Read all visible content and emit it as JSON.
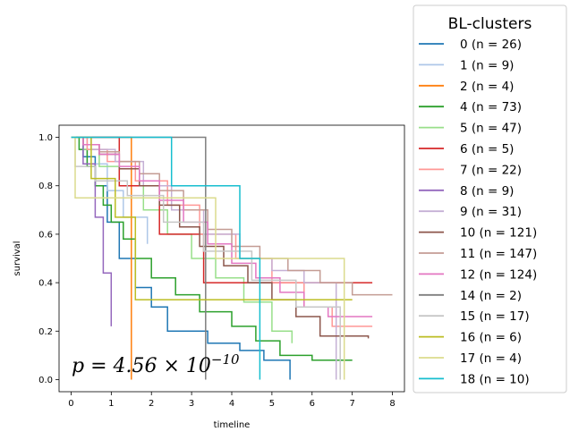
{
  "chart_data": {
    "type": "line",
    "step": true,
    "xlabel": "timeline",
    "ylabel": "survival",
    "xlim": [
      -0.3,
      8.3
    ],
    "ylim": [
      -0.05,
      1.05
    ],
    "xticks": [
      0,
      1,
      2,
      3,
      4,
      5,
      6,
      7,
      8
    ],
    "yticks": [
      0.0,
      0.2,
      0.4,
      0.6,
      0.8,
      1.0
    ],
    "xtick_labels": [
      "0",
      "1",
      "2",
      "3",
      "4",
      "5",
      "6",
      "7",
      "8"
    ],
    "ytick_labels": [
      "0.0",
      "0.2",
      "0.4",
      "0.6",
      "0.8",
      "1.0"
    ],
    "annotation": "p = 4.56 × 10^−10",
    "legend": {
      "title": "BL-clusters",
      "placement": "outside-right"
    },
    "grid": false,
    "series": [
      {
        "name": "0 (n = 26)",
        "color": "#1f77b4",
        "x": [
          0,
          0.3,
          0.6,
          0.9,
          1.2,
          1.6,
          2.0,
          2.4,
          3.4,
          4.2,
          4.8,
          5.45,
          5.45
        ],
        "y": [
          1.0,
          0.92,
          0.8,
          0.65,
          0.5,
          0.38,
          0.3,
          0.2,
          0.15,
          0.12,
          0.08,
          0.04,
          0.0
        ]
      },
      {
        "name": "1 (n = 9)",
        "color": "#aec7e8",
        "x": [
          0,
          0.4,
          0.9,
          1.3,
          1.9,
          1.9
        ],
        "y": [
          1.0,
          0.89,
          0.78,
          0.67,
          0.56,
          0.56
        ]
      },
      {
        "name": "2 (n = 4)",
        "color": "#ff7f0e",
        "x": [
          0,
          1.5,
          1.5
        ],
        "y": [
          1.0,
          1.0,
          0.0
        ]
      },
      {
        "name": "4 (n = 73)",
        "color": "#2ca02c",
        "x": [
          0,
          0.2,
          0.4,
          0.6,
          0.8,
          1.0,
          1.3,
          1.6,
          2.0,
          2.6,
          3.2,
          4.0,
          4.6,
          5.2,
          6.0,
          7.0
        ],
        "y": [
          1.0,
          0.95,
          0.88,
          0.8,
          0.72,
          0.65,
          0.58,
          0.5,
          0.42,
          0.35,
          0.28,
          0.22,
          0.16,
          0.1,
          0.08,
          0.08
        ]
      },
      {
        "name": "5 (n = 47)",
        "color": "#98df8a",
        "x": [
          0,
          0.3,
          0.7,
          1.2,
          1.8,
          2.4,
          3.0,
          3.6,
          4.3,
          5.0,
          5.5
        ],
        "y": [
          1.0,
          0.95,
          0.88,
          0.8,
          0.7,
          0.6,
          0.5,
          0.42,
          0.32,
          0.2,
          0.15
        ]
      },
      {
        "name": "6 (n = 5)",
        "color": "#d62728",
        "x": [
          0,
          1.2,
          2.2,
          3.3,
          7.5
        ],
        "y": [
          1.0,
          0.8,
          0.6,
          0.4,
          0.4
        ]
      },
      {
        "name": "7 (n = 22)",
        "color": "#ff9896",
        "x": [
          0,
          0.4,
          0.9,
          1.6,
          2.4,
          3.2,
          4.1,
          5.0,
          5.8,
          6.5,
          7.5
        ],
        "y": [
          1.0,
          0.95,
          0.9,
          0.82,
          0.72,
          0.6,
          0.5,
          0.4,
          0.3,
          0.22,
          0.22
        ]
      },
      {
        "name": "8 (n = 9)",
        "color": "#9467bd",
        "x": [
          0,
          0.3,
          0.6,
          0.8,
          1.0,
          1.0
        ],
        "y": [
          1.0,
          0.89,
          0.67,
          0.44,
          0.22,
          0.22
        ]
      },
      {
        "name": "9 (n = 31)",
        "color": "#c5b0d5",
        "x": [
          0,
          0.5,
          1.1,
          1.8,
          2.5,
          3.3,
          4.2,
          5.0,
          5.8,
          6.6,
          6.6
        ],
        "y": [
          1.0,
          0.95,
          0.9,
          0.8,
          0.7,
          0.6,
          0.5,
          0.45,
          0.4,
          0.35,
          0.0
        ]
      },
      {
        "name": "10 (n = 121)",
        "color": "#8c564b",
        "x": [
          0,
          0.3,
          0.7,
          1.2,
          1.7,
          2.2,
          2.7,
          3.2,
          3.8,
          4.4,
          5.0,
          5.6,
          6.2,
          7.4
        ],
        "y": [
          1.0,
          0.97,
          0.93,
          0.87,
          0.8,
          0.72,
          0.63,
          0.55,
          0.47,
          0.4,
          0.33,
          0.26,
          0.18,
          0.17
        ]
      },
      {
        "name": "11 (n = 147)",
        "color": "#c49c94",
        "x": [
          0,
          0.3,
          0.7,
          1.2,
          1.7,
          2.2,
          2.8,
          3.4,
          4.0,
          4.7,
          5.4,
          6.2,
          7.0,
          8.0
        ],
        "y": [
          1.0,
          0.97,
          0.94,
          0.9,
          0.85,
          0.78,
          0.7,
          0.62,
          0.55,
          0.5,
          0.45,
          0.4,
          0.35,
          0.35
        ]
      },
      {
        "name": "12 (n = 124)",
        "color": "#e377c2",
        "x": [
          0,
          0.3,
          0.7,
          1.2,
          1.7,
          2.2,
          2.8,
          3.4,
          4.0,
          4.6,
          5.2,
          5.8,
          6.4,
          7.5
        ],
        "y": [
          1.0,
          0.97,
          0.93,
          0.88,
          0.82,
          0.74,
          0.65,
          0.56,
          0.48,
          0.42,
          0.36,
          0.3,
          0.26,
          0.26
        ]
      },
      {
        "name": "14 (n = 2)",
        "color": "#7f7f7f",
        "x": [
          0,
          3.35,
          3.35
        ],
        "y": [
          1.0,
          1.0,
          0.0
        ]
      },
      {
        "name": "15 (n = 17)",
        "color": "#c7c7c7",
        "x": [
          0,
          0.1,
          0.6,
          1.4,
          2.3,
          3.3,
          4.5,
          5.6,
          6.7,
          6.7
        ],
        "y": [
          1.0,
          0.88,
          0.82,
          0.76,
          0.65,
          0.53,
          0.41,
          0.3,
          0.24,
          0.0
        ]
      },
      {
        "name": "16 (n = 6)",
        "color": "#bcbd22",
        "x": [
          0,
          0.5,
          1.1,
          1.6,
          7.0
        ],
        "y": [
          1.0,
          0.83,
          0.67,
          0.33,
          0.33
        ]
      },
      {
        "name": "17 (n = 4)",
        "color": "#dbdb8d",
        "x": [
          0,
          0.1,
          1.8,
          3.6,
          6.8,
          6.8
        ],
        "y": [
          1.0,
          0.75,
          0.75,
          0.5,
          0.5,
          0.0
        ]
      },
      {
        "name": "18 (n = 10)",
        "color": "#17becf",
        "x": [
          0,
          2.5,
          4.2,
          4.7,
          4.7
        ],
        "y": [
          1.0,
          0.8,
          0.5,
          0.2,
          0.0
        ]
      }
    ]
  }
}
